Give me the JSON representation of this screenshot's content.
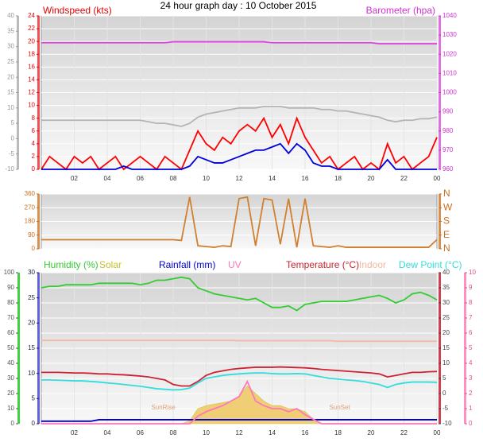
{
  "title": "24 hour graph day : 10 October 2015",
  "chart_data": [
    {
      "type": "line",
      "ylabel": "Windspeed (kts)",
      "y2label": "Barometer (hpa)",
      "x": [
        0,
        0.5,
        1,
        1.5,
        2,
        2.5,
        3,
        3.5,
        4,
        4.5,
        5,
        5.5,
        6,
        6.5,
        7,
        7.5,
        8,
        8.5,
        9,
        9.5,
        10,
        10.5,
        11,
        11.5,
        12,
        12.5,
        13,
        13.5,
        14,
        14.5,
        15,
        15.5,
        16,
        16.5,
        17,
        17.5,
        18,
        18.5,
        19,
        19.5,
        20,
        20.5,
        21,
        21.5,
        22,
        22.5,
        23,
        23.5,
        24
      ],
      "xlim": [
        0,
        24
      ],
      "xticks": [
        {
          "value": 2,
          "label": "02"
        },
        {
          "value": 4,
          "label": "04"
        },
        {
          "value": 6,
          "label": "06"
        },
        {
          "value": 8,
          "label": "08"
        },
        10,
        12,
        14,
        16,
        18,
        20,
        22,
        {
          "value": 24,
          "label": "00"
        }
      ],
      "ylim": [
        0,
        24
      ],
      "yticks": [
        0,
        2,
        4,
        6,
        8,
        10,
        12,
        14,
        16,
        18,
        20,
        22,
        24
      ],
      "y2lim": [
        960,
        1040
      ],
      "y2ticks": [
        960,
        970,
        980,
        990,
        1000,
        1010,
        1020,
        1030,
        1040
      ],
      "y3lim": [
        -10,
        40
      ],
      "y3ticks": [
        -10,
        -5,
        0,
        5,
        10,
        15,
        20,
        25,
        30,
        35,
        40
      ],
      "grid": true,
      "series": [
        {
          "color": "#b4b4b4",
          "axis": "y3",
          "values": [
            6,
            6,
            6,
            6,
            6,
            6,
            6,
            6,
            6,
            6,
            6,
            6,
            6,
            5.5,
            5,
            5,
            4.5,
            4,
            5,
            7,
            8,
            8.5,
            9,
            9.5,
            10,
            10,
            10,
            10.5,
            10.5,
            10.5,
            10,
            10,
            10,
            10,
            9.5,
            9.5,
            9,
            9,
            8.5,
            8,
            7.5,
            7,
            6,
            5.5,
            6,
            6,
            6.5,
            6.5,
            7
          ]
        },
        {
          "color": "#e040e0",
          "axis": "y2",
          "values": [
            1026,
            1026,
            1026,
            1026,
            1026,
            1026,
            1026,
            1026,
            1026,
            1026,
            1026,
            1026,
            1026,
            1026,
            1026,
            1026,
            1026.5,
            1026.5,
            1026.5,
            1026.5,
            1026.5,
            1026.5,
            1026.5,
            1026.5,
            1026.5,
            1026.5,
            1026.5,
            1026.5,
            1026,
            1026,
            1026,
            1026,
            1026,
            1026,
            1026,
            1026,
            1026,
            1026,
            1026,
            1026,
            1026,
            1025.5,
            1025.5,
            1025.5,
            1025.5,
            1025.5,
            1025.5,
            1025.5,
            1025.5
          ]
        },
        {
          "color": "#ff0000",
          "axis": "y",
          "values": [
            0,
            2,
            1,
            0,
            2,
            1,
            2,
            0,
            1,
            2,
            0,
            1,
            2,
            1,
            0,
            2,
            1,
            0,
            3,
            6,
            4,
            3,
            5,
            4,
            6,
            7,
            6,
            8,
            5,
            7,
            4,
            8,
            5,
            3,
            1,
            2,
            0,
            1,
            2,
            0,
            1,
            0,
            4,
            1,
            2,
            0,
            1,
            2,
            5
          ]
        },
        {
          "color": "#0000dd",
          "axis": "y",
          "values": [
            0,
            0,
            0,
            0,
            0,
            0,
            0,
            0,
            0,
            0,
            0.5,
            0,
            0,
            0,
            0,
            0,
            0,
            0,
            0.5,
            2,
            1.5,
            1,
            1,
            1.5,
            2,
            2.5,
            3,
            3,
            3.5,
            4,
            2.5,
            4,
            3,
            1,
            0.5,
            0.5,
            0,
            0,
            0,
            0,
            0,
            0,
            1.5,
            0,
            0,
            0,
            0,
            0,
            0
          ]
        }
      ]
    },
    {
      "type": "line",
      "x": [
        0,
        0.5,
        1,
        1.5,
        2,
        2.5,
        3,
        3.5,
        4,
        4.5,
        5,
        5.5,
        6,
        6.5,
        7,
        7.5,
        8,
        8.5,
        9,
        9.5,
        10,
        10.5,
        11,
        11.5,
        12,
        12.5,
        13,
        13.5,
        14,
        14.5,
        15,
        15.5,
        16,
        16.5,
        17,
        17.5,
        18,
        18.5,
        19,
        19.5,
        20,
        20.5,
        21,
        21.5,
        22,
        22.5,
        23,
        23.5,
        24
      ],
      "xlim": [
        0,
        24
      ],
      "ylim": [
        0,
        360
      ],
      "yticks": [
        0,
        90,
        180,
        270,
        360
      ],
      "y2lim": [
        0,
        360
      ],
      "y2ticks": [
        {
          "value": 0,
          "label": "N"
        },
        {
          "value": 90,
          "label": "E"
        },
        {
          "value": 180,
          "label": "S"
        },
        {
          "value": 270,
          "label": "W"
        },
        {
          "value": 360,
          "label": "N"
        }
      ],
      "grid": true,
      "series": [
        {
          "color": "#d08030",
          "axis": "y",
          "values": [
            60,
            60,
            60,
            60,
            60,
            60,
            60,
            60,
            60,
            60,
            60,
            60,
            60,
            60,
            60,
            60,
            60,
            55,
            340,
            20,
            15,
            10,
            20,
            15,
            330,
            340,
            20,
            330,
            320,
            30,
            330,
            10,
            330,
            20,
            15,
            10,
            20,
            10,
            10,
            10,
            10,
            10,
            10,
            10,
            10,
            10,
            10,
            10,
            60
          ]
        }
      ]
    },
    {
      "type": "line",
      "x": [
        0,
        0.5,
        1,
        1.5,
        2,
        2.5,
        3,
        3.5,
        4,
        4.5,
        5,
        5.5,
        6,
        6.5,
        7,
        7.5,
        8,
        8.5,
        9,
        9.5,
        10,
        10.5,
        11,
        11.5,
        12,
        12.5,
        13,
        13.5,
        14,
        14.5,
        15,
        15.5,
        16,
        16.5,
        17,
        17.5,
        18,
        18.5,
        19,
        19.5,
        20,
        20.5,
        21,
        21.5,
        22,
        22.5,
        23,
        23.5,
        24
      ],
      "xlim": [
        0,
        24
      ],
      "xticks": [
        {
          "value": 2,
          "label": "02"
        },
        {
          "value": 4,
          "label": "04"
        },
        {
          "value": 6,
          "label": "06"
        },
        {
          "value": 8,
          "label": "08"
        },
        10,
        12,
        14,
        16,
        18,
        20,
        22,
        {
          "value": 24,
          "label": "00"
        }
      ],
      "ylim": [
        0,
        100
      ],
      "yticks": [
        0,
        10,
        20,
        30,
        40,
        50,
        60,
        70,
        80,
        90,
        100
      ],
      "y3lim": [
        0,
        30
      ],
      "y3ticks": [
        0,
        5,
        10,
        15,
        20,
        25,
        30
      ],
      "y2lim": [
        -10,
        40
      ],
      "y2ticks": [
        -10,
        -5,
        0,
        5,
        10,
        15,
        20,
        25,
        30,
        35,
        40
      ],
      "y4lim": [
        0,
        10
      ],
      "y4ticks": [
        0,
        1,
        2,
        3,
        4,
        5,
        6,
        7,
        8,
        9,
        10
      ],
      "grid": true,
      "annotations": [
        {
          "text": "SunRise",
          "x": 7.4
        },
        {
          "text": "SunSet",
          "x": 18.1
        }
      ],
      "series": [
        {
          "name": "Humidity (%)",
          "color": "#33cc33",
          "axis": "y",
          "values": [
            90,
            91,
            91,
            92,
            92,
            92,
            92,
            93,
            93,
            93,
            93,
            93,
            92,
            93,
            95,
            95,
            96,
            97,
            96,
            90,
            88,
            86,
            85,
            84,
            83,
            82,
            83,
            80,
            77,
            77,
            78,
            75,
            79,
            80,
            81,
            81,
            81,
            81,
            82,
            83,
            84,
            85,
            83,
            80,
            82,
            86,
            87,
            85,
            82
          ]
        },
        {
          "name": "Solar",
          "color": "#c8c020",
          "fill": "#f0c860",
          "axis": "y",
          "style": "area",
          "values": [
            0,
            0,
            0,
            0,
            0,
            0,
            0,
            0,
            0,
            0,
            0,
            0,
            0,
            0,
            0,
            0,
            0,
            0,
            2,
            10,
            12,
            13,
            14,
            15,
            18,
            25,
            20,
            15,
            12,
            12,
            10,
            10,
            8,
            3,
            0,
            0,
            0,
            0,
            0,
            0,
            0,
            0,
            0,
            0,
            0,
            0,
            0,
            0,
            0
          ]
        },
        {
          "name": "Rainfall (mm)",
          "color": "#0000cc",
          "axis": "y3",
          "values": [
            0.5,
            0.5,
            0.5,
            0.5,
            0.5,
            0.5,
            0.5,
            0.8,
            0.8,
            0.8,
            0.8,
            0.8,
            0.8,
            0.8,
            0.8,
            0.8,
            0.8,
            0.8,
            0.8,
            0.8,
            0.8,
            0.8,
            0.8,
            0.8,
            0.8,
            0.8,
            0.8,
            0.8,
            0.8,
            0.8,
            0.8,
            0.8,
            0.8,
            0.8,
            0.8,
            0.8,
            0.8,
            0.8,
            0.8,
            0.8,
            0.8,
            0.8,
            0.8,
            0.8,
            0.8,
            0.8,
            0.8,
            0.8,
            0.8
          ]
        },
        {
          "name": "UV",
          "color": "#ff77bb",
          "axis": "y4",
          "values": [
            0,
            0,
            0,
            0,
            0,
            0,
            0,
            0,
            0,
            0,
            0,
            0,
            0,
            0,
            0,
            0,
            0,
            0,
            0,
            0.5,
            0.8,
            1,
            1.2,
            1.5,
            1.8,
            2.8,
            1.5,
            1.2,
            1,
            1,
            0.8,
            1,
            0.6,
            0.3,
            0,
            0,
            0,
            0,
            0,
            0,
            0,
            0,
            0,
            0,
            0,
            0,
            0,
            0,
            0
          ]
        },
        {
          "name": "Temperature (°C)",
          "color": "#cc2233",
          "axis": "y2",
          "values": [
            7,
            7,
            7,
            6.9,
            6.8,
            6.8,
            6.7,
            6.5,
            6.5,
            6.3,
            6.2,
            6,
            5.8,
            5.5,
            5,
            4.5,
            3,
            2.5,
            2.5,
            4,
            6,
            7,
            7.5,
            8,
            8.3,
            8.5,
            8.7,
            8.7,
            8.7,
            8.8,
            8.7,
            8.6,
            8.5,
            8.3,
            8,
            7.8,
            7.6,
            7.4,
            7.2,
            7,
            6.8,
            6.5,
            5.5,
            6,
            6.5,
            7,
            7,
            7.2,
            7.3
          ]
        },
        {
          "name": "Indoor",
          "color": "#f4b8a0",
          "axis": "y2",
          "values": [
            17.6,
            17.6,
            17.6,
            17.6,
            17.6,
            17.6,
            17.6,
            17.6,
            17.6,
            17.6,
            17.6,
            17.6,
            17.6,
            17.6,
            17.6,
            17.6,
            17.6,
            17.6,
            17.6,
            17.6,
            17.6,
            17.6,
            17.6,
            17.6,
            17.5,
            17.5,
            17.5,
            17.5,
            17.5,
            17.5,
            17.5,
            17.5,
            17.5,
            17.5,
            17.5,
            17.5,
            17.3,
            17.3,
            17.3,
            17.3,
            17.3,
            17.3,
            17.3,
            17.3,
            17.3,
            17.3,
            17.3,
            17.3,
            17.3
          ]
        },
        {
          "name": "Dew Point (°C)",
          "color": "#33dddd",
          "axis": "y2",
          "values": [
            4.5,
            4.5,
            4.4,
            4.3,
            4.2,
            4.2,
            4,
            3.8,
            3.5,
            3.3,
            3,
            2.7,
            2.4,
            2,
            1.6,
            1.4,
            1.2,
            1.3,
            1.8,
            3.5,
            5,
            5.5,
            6,
            6.3,
            6.5,
            6.7,
            6.8,
            6.8,
            6.6,
            6.5,
            6.5,
            6.6,
            6.5,
            6,
            5.5,
            5,
            4.8,
            4.5,
            4.3,
            4,
            3.5,
            3,
            2,
            3,
            3.5,
            3.8,
            3.8,
            3.8,
            3.7
          ]
        }
      ]
    }
  ]
}
